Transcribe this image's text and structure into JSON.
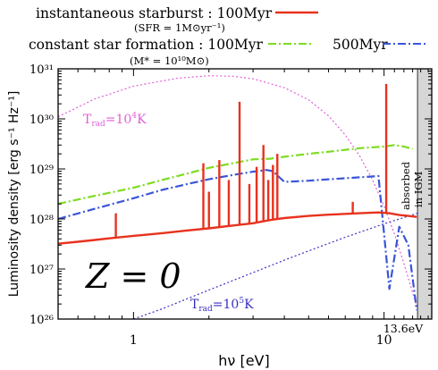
{
  "legend": {
    "starburst_name": "instantaneous starburst",
    "starburst_age": "100Myr",
    "starburst_param": "(SFR = 1M⊙yr⁻¹)",
    "constant_name": "constant star formation",
    "constant_age": "100Myr",
    "constant_age2": "500Myr",
    "constant_param": "(M* = 10¹⁰M⊙)"
  },
  "annotations": {
    "trad1": "T",
    "trad1_sub": "rad",
    "trad1_val": "=10",
    "trad1_exp": "4",
    "trad1_unit": "K",
    "trad2": "T",
    "trad2_sub": "rad",
    "trad2_val": "=10",
    "trad2_exp": "5",
    "trad2_unit": "K",
    "metallicity": "Z = 0",
    "absorbed": "absorbed",
    "absorbed2": "in IGM",
    "cut_label": "13.6eV"
  },
  "colors": {
    "starburst_100": "#e8321e",
    "constant_100": "#7ddc1f",
    "constant_500": "#3a55d8",
    "trad_1e4": "#e060d8",
    "trad_1e5": "#3a2fc0",
    "igm_band": "#d6d6d6"
  },
  "chart_data": {
    "type": "line",
    "title": "",
    "xlabel": "hν [eV]",
    "ylabel": "Luminosity density [erg s⁻¹ Hz⁻¹]",
    "xscale": "log",
    "yscale": "log",
    "xlim": [
      0.5,
      15.5
    ],
    "ylim": [
      1e+26,
      1e+31
    ],
    "x_ticks": [
      1,
      10
    ],
    "x_tick_labels": [
      "1",
      "10"
    ],
    "y_ticks": [
      1e+26,
      1e+27,
      1e+28,
      1e+29,
      1e+30,
      1e+31
    ],
    "y_tick_labels": [
      "10²⁶",
      "10²⁷",
      "10²⁸",
      "10²⁹",
      "10³⁰",
      "10³¹"
    ],
    "shaded_region": {
      "x_from": 13.6,
      "x_to": 15.5,
      "label": "absorbed in IGM"
    },
    "series": [
      {
        "name": "instantaneous starburst 100Myr",
        "style": "solid",
        "points": [
          [
            0.5,
            3.2e+27
          ],
          [
            0.6,
            3.5e+27
          ],
          [
            0.7,
            3.8e+27
          ],
          [
            0.8,
            4.1e+27
          ],
          [
            1.0,
            4.6e+27
          ],
          [
            1.3,
            5.2e+27
          ],
          [
            1.6,
            5.8e+27
          ],
          [
            2.0,
            6.5e+27
          ],
          [
            2.5,
            7.4e+27
          ],
          [
            3.0,
            8.2e+27
          ],
          [
            3.3,
            9e+27
          ],
          [
            3.6,
            9.7e+27
          ],
          [
            4.0,
            1.04e+28
          ],
          [
            5.0,
            1.15e+28
          ],
          [
            6.0,
            1.22e+28
          ],
          [
            8.0,
            1.3e+28
          ],
          [
            9.5,
            1.35e+28
          ],
          [
            10.5,
            1.3e+28
          ],
          [
            11.5,
            1.2e+28
          ],
          [
            12.5,
            1.15e+28
          ],
          [
            13.5,
            1.1e+28
          ]
        ],
        "emission_lines": [
          [
            0.85,
            1.3e+28
          ],
          [
            1.9,
            1.3e+29
          ],
          [
            2.0,
            3.5e+28
          ],
          [
            2.2,
            1.5e+29
          ],
          [
            2.4,
            6e+28
          ],
          [
            2.65,
            2.2e+30
          ],
          [
            2.9,
            5e+28
          ],
          [
            3.1,
            1.1e+29
          ],
          [
            3.3,
            3e+29
          ],
          [
            3.45,
            6e+28
          ],
          [
            3.6,
            1.2e+29
          ],
          [
            3.75,
            2e+29
          ],
          [
            7.5,
            2.2e+28
          ],
          [
            10.2,
            5e+30
          ]
        ]
      },
      {
        "name": "constant star formation 100Myr",
        "style": "dash-dot",
        "points": [
          [
            0.5,
            2e+28
          ],
          [
            0.7,
            2.9e+28
          ],
          [
            1.0,
            4.2e+28
          ],
          [
            1.3,
            6e+28
          ],
          [
            1.7,
            8.5e+28
          ],
          [
            2.0,
            1.05e+29
          ],
          [
            2.5,
            1.3e+29
          ],
          [
            3.0,
            1.55e+29
          ],
          [
            3.5,
            1.6e+29
          ],
          [
            4.0,
            1.75e+29
          ],
          [
            5.0,
            2e+29
          ],
          [
            6.0,
            2.2e+29
          ],
          [
            8.0,
            2.6e+29
          ],
          [
            10.0,
            2.8e+29
          ],
          [
            11.0,
            3e+29
          ],
          [
            12.0,
            2.8e+29
          ],
          [
            13.0,
            2.5e+29
          ]
        ]
      },
      {
        "name": "constant star formation 500Myr",
        "style": "dash-dot",
        "points": [
          [
            0.5,
            1e+28
          ],
          [
            0.7,
            1.6e+28
          ],
          [
            1.0,
            2.6e+28
          ],
          [
            1.3,
            3.8e+28
          ],
          [
            1.7,
            5.2e+28
          ],
          [
            2.0,
            6.2e+28
          ],
          [
            2.5,
            7.6e+28
          ],
          [
            3.0,
            8.8e+28
          ],
          [
            3.4,
            9.5e+28
          ],
          [
            3.6,
            9e+28
          ],
          [
            4.0,
            5.5e+28
          ],
          [
            5.0,
            5.8e+28
          ],
          [
            6.0,
            6.2e+28
          ],
          [
            8.0,
            6.8e+28
          ],
          [
            9.5,
            7.2e+28
          ],
          [
            10.0,
            5e+27
          ],
          [
            10.5,
            4e+26
          ],
          [
            11.5,
            7e+27
          ],
          [
            12.5,
            3e+27
          ],
          [
            13.5,
            1.5e+26
          ]
        ]
      },
      {
        "name": "T_rad = 10^4 K",
        "style": "dotted",
        "points": [
          [
            0.5,
            1.1e+30
          ],
          [
            0.7,
            2.5e+30
          ],
          [
            1.0,
            4.5e+30
          ],
          [
            1.5,
            6.5e+30
          ],
          [
            2.0,
            7.3e+30
          ],
          [
            2.5,
            7.1e+30
          ],
          [
            3.0,
            6.3e+30
          ],
          [
            4.0,
            4.2e+30
          ],
          [
            5.0,
            2.4e+30
          ],
          [
            6.0,
            1.15e+30
          ],
          [
            7.0,
            4.8e+29
          ],
          [
            8.0,
            1.8e+29
          ],
          [
            9.0,
            6e+28
          ],
          [
            10.0,
            1.8e+28
          ],
          [
            11.0,
            5e+27
          ],
          [
            12.0,
            1.3e+27
          ],
          [
            13.6,
            1.6e+26
          ]
        ]
      },
      {
        "name": "T_rad = 10^5 K",
        "style": "dotted",
        "points": [
          [
            1.0,
            1e+26
          ],
          [
            1.3,
            1.6e+26
          ],
          [
            2.0,
            3.8e+26
          ],
          [
            3.0,
            8.5e+26
          ],
          [
            4.0,
            1.5e+27
          ],
          [
            5.0,
            2.3e+27
          ],
          [
            7.0,
            4.3e+27
          ],
          [
            10.0,
            8e+27
          ],
          [
            13.6,
            1.3e+28
          ]
        ]
      }
    ]
  }
}
